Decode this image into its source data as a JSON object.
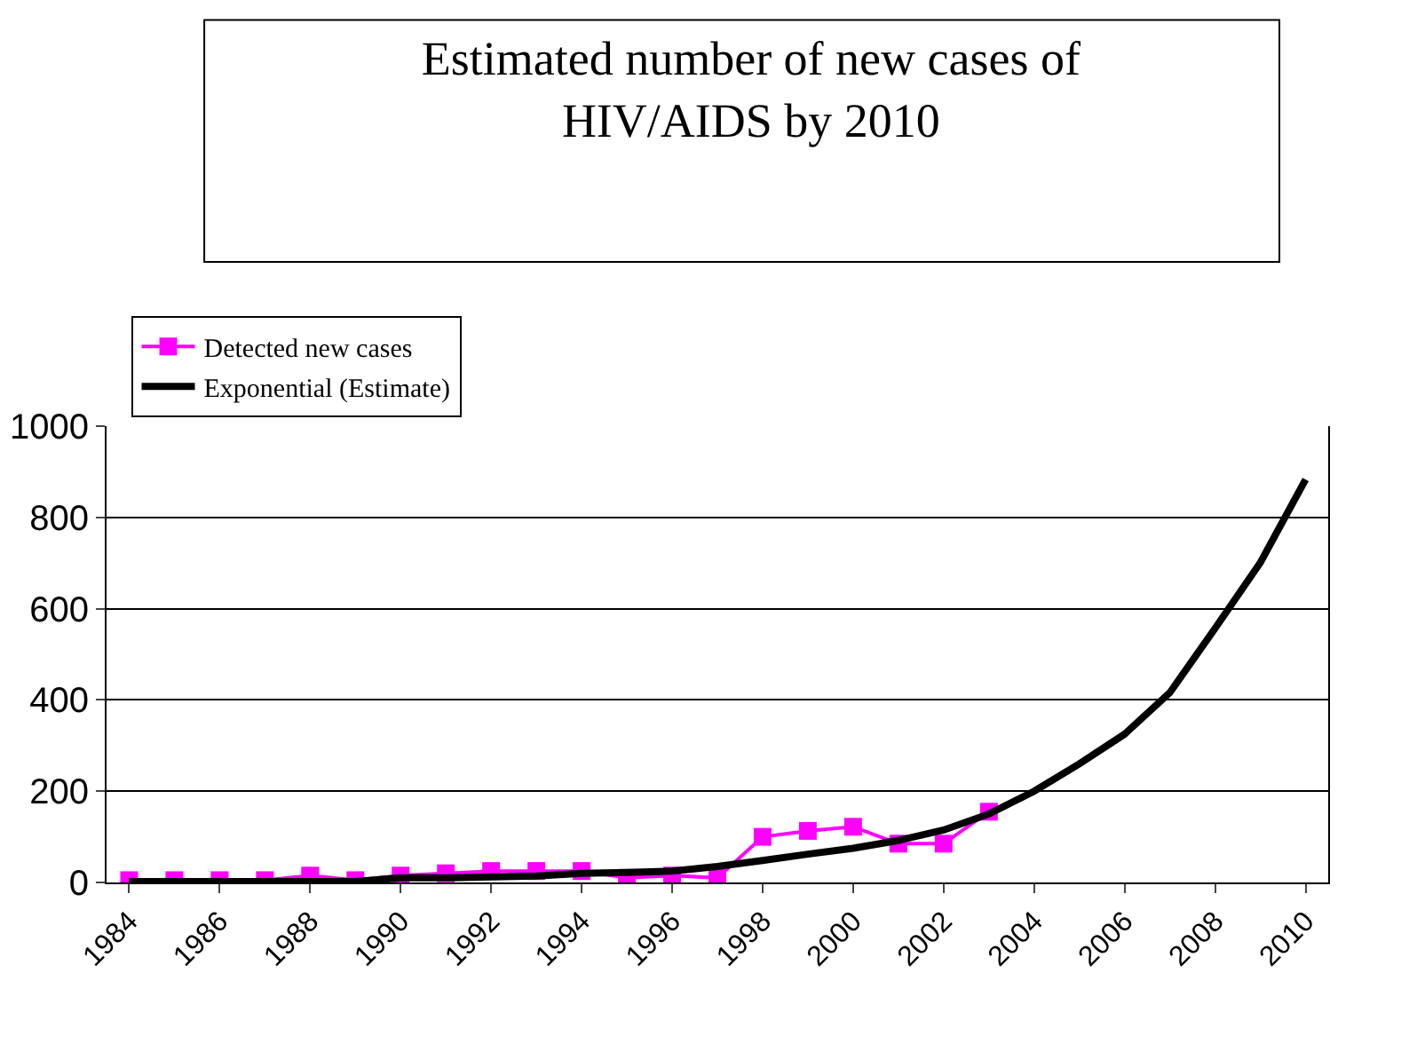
{
  "chart_data": {
    "type": "line",
    "title": "Estimated number of new cases of\nHIV/AIDS by 2010",
    "categories": [
      "1984",
      null,
      "1986",
      null,
      "1988",
      null,
      "1990",
      null,
      "1992",
      null,
      "1994",
      null,
      "1996",
      null,
      "1998",
      null,
      "2000",
      null,
      "2002",
      null,
      "2004",
      null,
      "2006",
      null,
      "2008",
      null,
      "2010"
    ],
    "series": [
      {
        "name": "Detected new cases",
        "color": "#ff00ff",
        "marker": "square",
        "values": [
          5,
          5,
          5,
          5,
          15,
          5,
          15,
          20,
          25,
          25,
          25,
          10,
          15,
          10,
          100,
          113,
          122,
          85,
          85,
          155,
          null,
          null,
          null,
          null,
          null,
          null,
          null
        ]
      },
      {
        "name": "Exponential (Estimate)",
        "color": "#000000",
        "marker": "none",
        "values": [
          2,
          2,
          2,
          2,
          2,
          2,
          10,
          10,
          12,
          14,
          20,
          22,
          25,
          35,
          48,
          62,
          75,
          92,
          115,
          150,
          200,
          260,
          325,
          416,
          557,
          701,
          883
        ]
      }
    ],
    "ylim": [
      0,
      1000
    ],
    "yticks": [
      0,
      200,
      400,
      600,
      800,
      1000
    ],
    "grid": "y",
    "legend": "top left"
  }
}
